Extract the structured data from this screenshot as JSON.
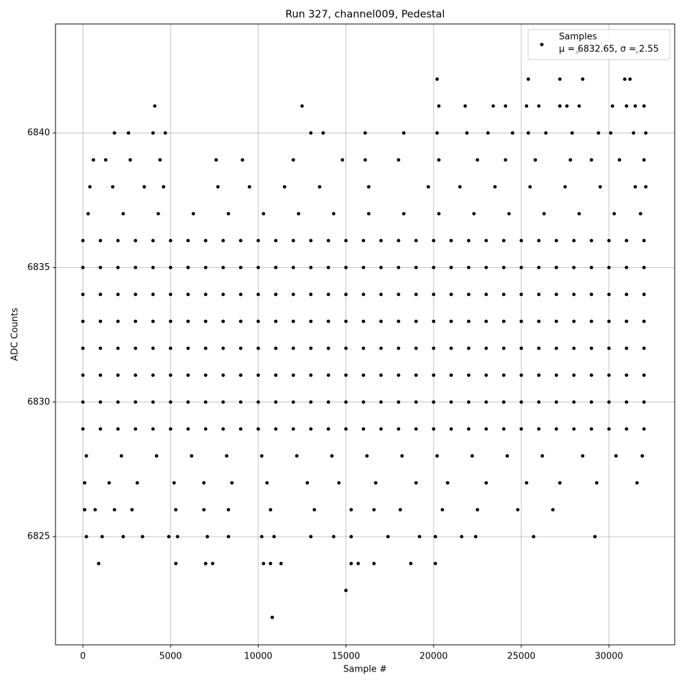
{
  "chart_data": {
    "type": "scatter",
    "title": "Run 327, channel009, Pedestal",
    "xlabel": "Sample #",
    "ylabel": "ADC Counts",
    "xlim": [
      -1562,
      33750
    ],
    "ylim": [
      6820.98,
      6844.05
    ],
    "xticks": [
      0,
      5000,
      10000,
      15000,
      20000,
      25000,
      30000
    ],
    "yticks": [
      6825,
      6830,
      6835,
      6840
    ],
    "grid": true,
    "legend": "upper right",
    "legend_note": "μ = 6832.65, σ = 2.55",
    "series": [
      {
        "name": "Samples",
        "color": "#000000",
        "x": [
          0,
          1000,
          2000,
          3000,
          4000,
          5000,
          6000,
          7000,
          8000,
          9000,
          10000,
          11000,
          12000,
          13000,
          14000,
          15000,
          16000,
          17000,
          18000,
          19000,
          20000,
          21000,
          22000,
          23000,
          24000,
          25000,
          26000,
          27000,
          28000,
          29000,
          30000,
          31000,
          32000,
          0,
          1000,
          2000,
          3000,
          4000,
          5000,
          6000,
          7000,
          8000,
          9000,
          10000,
          11000,
          12000,
          13000,
          14000,
          15000,
          16000,
          17000,
          18000,
          19000,
          20000,
          21000,
          22000,
          23000,
          24000,
          25000,
          26000,
          27000,
          28000,
          29000,
          30000,
          31000,
          32000,
          0,
          1000,
          2000,
          3000,
          4000,
          5000,
          6000,
          7000,
          8000,
          9000,
          10000,
          11000,
          12000,
          13000,
          14000,
          15000,
          16000,
          17000,
          18000,
          19000,
          20000,
          21000,
          22000,
          23000,
          24000,
          25000,
          26000,
          27000,
          28000,
          29000,
          30000,
          31000,
          32000,
          0,
          1000,
          2000,
          3000,
          4000,
          5000,
          6000,
          7000,
          8000,
          9000,
          10000,
          11000,
          12000,
          13000,
          14000,
          15000,
          16000,
          17000,
          18000,
          19000,
          20000,
          21000,
          22000,
          23000,
          24000,
          25000,
          26000,
          27000,
          28000,
          29000,
          30000,
          31000,
          32000,
          0,
          1000,
          2000,
          3000,
          4000,
          5000,
          6000,
          7000,
          8000,
          9000,
          10000,
          11000,
          12000,
          13000,
          14000,
          15000,
          16000,
          17000,
          18000,
          19000,
          20000,
          21000,
          22000,
          23000,
          24000,
          25000,
          26000,
          27000,
          28000,
          29000,
          30000,
          31000,
          32000,
          0,
          1000,
          2000,
          3000,
          4000,
          5000,
          6000,
          7000,
          8000,
          9000,
          10000,
          11000,
          12000,
          13000,
          14000,
          15000,
          16000,
          17000,
          18000,
          19000,
          20000,
          21000,
          22000,
          23000,
          24000,
          25000,
          26000,
          27000,
          28000,
          29000,
          30000,
          31000,
          32000,
          0,
          1000,
          2000,
          3000,
          4000,
          5000,
          6000,
          7000,
          8000,
          9000,
          10000,
          11000,
          12000,
          13000,
          14000,
          15000,
          16000,
          17000,
          18000,
          19000,
          20000,
          21000,
          22000,
          23000,
          24000,
          25000,
          26000,
          27000,
          28000,
          29000,
          30000,
          31000,
          32000,
          0,
          1000,
          2000,
          3000,
          4000,
          5000,
          6000,
          7000,
          8000,
          9000,
          10000,
          11000,
          12000,
          13000,
          14000,
          15000,
          16000,
          17000,
          18000,
          19000,
          20000,
          21000,
          22000,
          23000,
          24000,
          25000,
          26000,
          27000,
          28000,
          29000,
          30000,
          31000,
          32000,
          300,
          2300,
          4300,
          6300,
          8300,
          10300,
          12300,
          14300,
          16300,
          18300,
          20300,
          22300,
          24300,
          26300,
          28300,
          30300,
          31800,
          200,
          2200,
          4200,
          6200,
          8200,
          10200,
          12200,
          14200,
          16200,
          18200,
          20200,
          22200,
          24200,
          26200,
          28500,
          30400,
          31900,
          400,
          1700,
          3500,
          4600,
          7700,
          9500,
          11500,
          13500,
          16300,
          19700,
          21500,
          23500,
          25500,
          27500,
          29500,
          31500,
          32100,
          100,
          1500,
          3100,
          5200,
          6900,
          8500,
          10500,
          12800,
          14600,
          16700,
          19000,
          20800,
          23000,
          25300,
          27200,
          29300,
          31600,
          600,
          1300,
          2700,
          4400,
          7600,
          9100,
          12000,
          14800,
          16100,
          18000,
          20300,
          22500,
          24100,
          25800,
          27800,
          29000,
          30600,
          32000,
          100,
          700,
          1800,
          2800,
          5300,
          6900,
          8300,
          10700,
          13200,
          15300,
          16600,
          18100,
          20500,
          22500,
          24800,
          26800,
          1800,
          2600,
          4000,
          4700,
          13000,
          13700,
          16100,
          18300,
          20200,
          21900,
          23100,
          24500,
          25400,
          26400,
          27900,
          29400,
          30100,
          31400,
          32100,
          200,
          1100,
          2300,
          3400,
          4900,
          5400,
          7100,
          8300,
          10200,
          10900,
          13000,
          14300,
          15300,
          17400,
          19200,
          20100,
          21600,
          22400,
          25700,
          29200,
          4100,
          12500,
          20300,
          21800,
          23400,
          24100,
          25300,
          26000,
          27200,
          27600,
          28300,
          30200,
          31000,
          31500,
          32000,
          20200,
          25400,
          27200,
          28500,
          30900,
          31200,
          28200,
          31600,
          900,
          5300,
          7000,
          7400,
          10300,
          10700,
          11300,
          15300,
          15700,
          16600,
          18700,
          20100,
          15000,
          10800
        ],
        "values": [
          6836,
          6836,
          6836,
          6836,
          6836,
          6836,
          6836,
          6836,
          6836,
          6836,
          6836,
          6836,
          6836,
          6836,
          6836,
          6836,
          6836,
          6836,
          6836,
          6836,
          6836,
          6836,
          6836,
          6836,
          6836,
          6836,
          6836,
          6836,
          6836,
          6836,
          6836,
          6836,
          6836,
          6835,
          6835,
          6835,
          6835,
          6835,
          6835,
          6835,
          6835,
          6835,
          6835,
          6835,
          6835,
          6835,
          6835,
          6835,
          6835,
          6835,
          6835,
          6835,
          6835,
          6835,
          6835,
          6835,
          6835,
          6835,
          6835,
          6835,
          6835,
          6835,
          6835,
          6835,
          6835,
          6835,
          6834,
          6834,
          6834,
          6834,
          6834,
          6834,
          6834,
          6834,
          6834,
          6834,
          6834,
          6834,
          6834,
          6834,
          6834,
          6834,
          6834,
          6834,
          6834,
          6834,
          6834,
          6834,
          6834,
          6834,
          6834,
          6834,
          6834,
          6834,
          6834,
          6834,
          6834,
          6834,
          6834,
          6833,
          6833,
          6833,
          6833,
          6833,
          6833,
          6833,
          6833,
          6833,
          6833,
          6833,
          6833,
          6833,
          6833,
          6833,
          6833,
          6833,
          6833,
          6833,
          6833,
          6833,
          6833,
          6833,
          6833,
          6833,
          6833,
          6833,
          6833,
          6833,
          6833,
          6833,
          6833,
          6833,
          6832,
          6832,
          6832,
          6832,
          6832,
          6832,
          6832,
          6832,
          6832,
          6832,
          6832,
          6832,
          6832,
          6832,
          6832,
          6832,
          6832,
          6832,
          6832,
          6832,
          6832,
          6832,
          6832,
          6832,
          6832,
          6832,
          6832,
          6832,
          6832,
          6832,
          6832,
          6832,
          6832,
          6831,
          6831,
          6831,
          6831,
          6831,
          6831,
          6831,
          6831,
          6831,
          6831,
          6831,
          6831,
          6831,
          6831,
          6831,
          6831,
          6831,
          6831,
          6831,
          6831,
          6831,
          6831,
          6831,
          6831,
          6831,
          6831,
          6831,
          6831,
          6831,
          6831,
          6831,
          6831,
          6831,
          6830,
          6830,
          6830,
          6830,
          6830,
          6830,
          6830,
          6830,
          6830,
          6830,
          6830,
          6830,
          6830,
          6830,
          6830,
          6830,
          6830,
          6830,
          6830,
          6830,
          6830,
          6830,
          6830,
          6830,
          6830,
          6830,
          6830,
          6830,
          6830,
          6830,
          6830,
          6830,
          6830,
          6829,
          6829,
          6829,
          6829,
          6829,
          6829,
          6829,
          6829,
          6829,
          6829,
          6829,
          6829,
          6829,
          6829,
          6829,
          6829,
          6829,
          6829,
          6829,
          6829,
          6829,
          6829,
          6829,
          6829,
          6829,
          6829,
          6829,
          6829,
          6829,
          6829,
          6829,
          6829,
          6829,
          6837,
          6837,
          6837,
          6837,
          6837,
          6837,
          6837,
          6837,
          6837,
          6837,
          6837,
          6837,
          6837,
          6837,
          6837,
          6837,
          6837,
          6828,
          6828,
          6828,
          6828,
          6828,
          6828,
          6828,
          6828,
          6828,
          6828,
          6828,
          6828,
          6828,
          6828,
          6828,
          6828,
          6828,
          6838,
          6838,
          6838,
          6838,
          6838,
          6838,
          6838,
          6838,
          6838,
          6838,
          6838,
          6838,
          6838,
          6838,
          6838,
          6838,
          6838,
          6827,
          6827,
          6827,
          6827,
          6827,
          6827,
          6827,
          6827,
          6827,
          6827,
          6827,
          6827,
          6827,
          6827,
          6827,
          6827,
          6827,
          6839,
          6839,
          6839,
          6839,
          6839,
          6839,
          6839,
          6839,
          6839,
          6839,
          6839,
          6839,
          6839,
          6839,
          6839,
          6839,
          6839,
          6839,
          6826,
          6826,
          6826,
          6826,
          6826,
          6826,
          6826,
          6826,
          6826,
          6826,
          6826,
          6826,
          6826,
          6826,
          6826,
          6826,
          6840,
          6840,
          6840,
          6840,
          6840,
          6840,
          6840,
          6840,
          6840,
          6840,
          6840,
          6840,
          6840,
          6840,
          6840,
          6840,
          6840,
          6840,
          6840,
          6825,
          6825,
          6825,
          6825,
          6825,
          6825,
          6825,
          6825,
          6825,
          6825,
          6825,
          6825,
          6825,
          6825,
          6825,
          6825,
          6825,
          6825,
          6825,
          6825,
          6841,
          6841,
          6841,
          6841,
          6841,
          6841,
          6841,
          6841,
          6841,
          6841,
          6841,
          6841,
          6841,
          6841,
          6841,
          6842,
          6842,
          6842,
          6842,
          6842,
          6842,
          6843,
          6843,
          6824,
          6824,
          6824,
          6824,
          6824,
          6824,
          6824,
          6824,
          6824,
          6824,
          6824,
          6824,
          6823,
          6822
        ]
      }
    ]
  }
}
